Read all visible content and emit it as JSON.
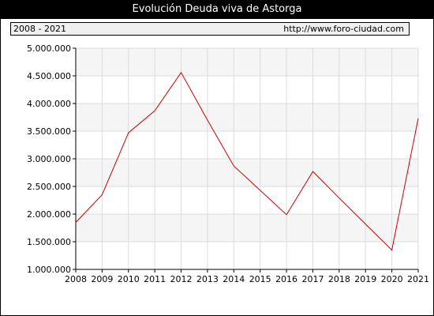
{
  "header": {
    "title": "Evolución Deuda viva de Astorga"
  },
  "info": {
    "range": "2008 - 2021",
    "url": "http://www.foro-ciudad.com"
  },
  "chart_data": {
    "type": "line",
    "title": "Evolución Deuda viva de Astorga",
    "xlabel": "",
    "ylabel": "",
    "x": [
      2008,
      2009,
      2010,
      2011,
      2012,
      2013,
      2014,
      2015,
      2016,
      2017,
      2018,
      2019,
      2020,
      2021
    ],
    "x_tick_labels": [
      "2008",
      "2009",
      "2010",
      "2011",
      "2012",
      "2013",
      "2014",
      "2015",
      "2016",
      "2017",
      "2018",
      "2019",
      "2020",
      "2021"
    ],
    "y_tick_values": [
      1000000,
      1500000,
      2000000,
      2500000,
      3000000,
      3500000,
      4000000,
      4500000,
      5000000
    ],
    "y_tick_labels": [
      "1.000.000",
      "1.500.000",
      "2.000.000",
      "2.500.000",
      "3.000.000",
      "3.500.000",
      "4.000.000",
      "4.500.000",
      "5.000.000"
    ],
    "ylim": [
      1000000,
      5000000
    ],
    "grid": true,
    "series": [
      {
        "values": [
          1850000,
          2350000,
          3470000,
          3870000,
          4560000,
          3700000,
          2870000,
          2430000,
          1990000,
          2770000,
          2290000,
          1820000,
          1350000,
          3730000
        ],
        "color": "#cc0000"
      }
    ]
  }
}
